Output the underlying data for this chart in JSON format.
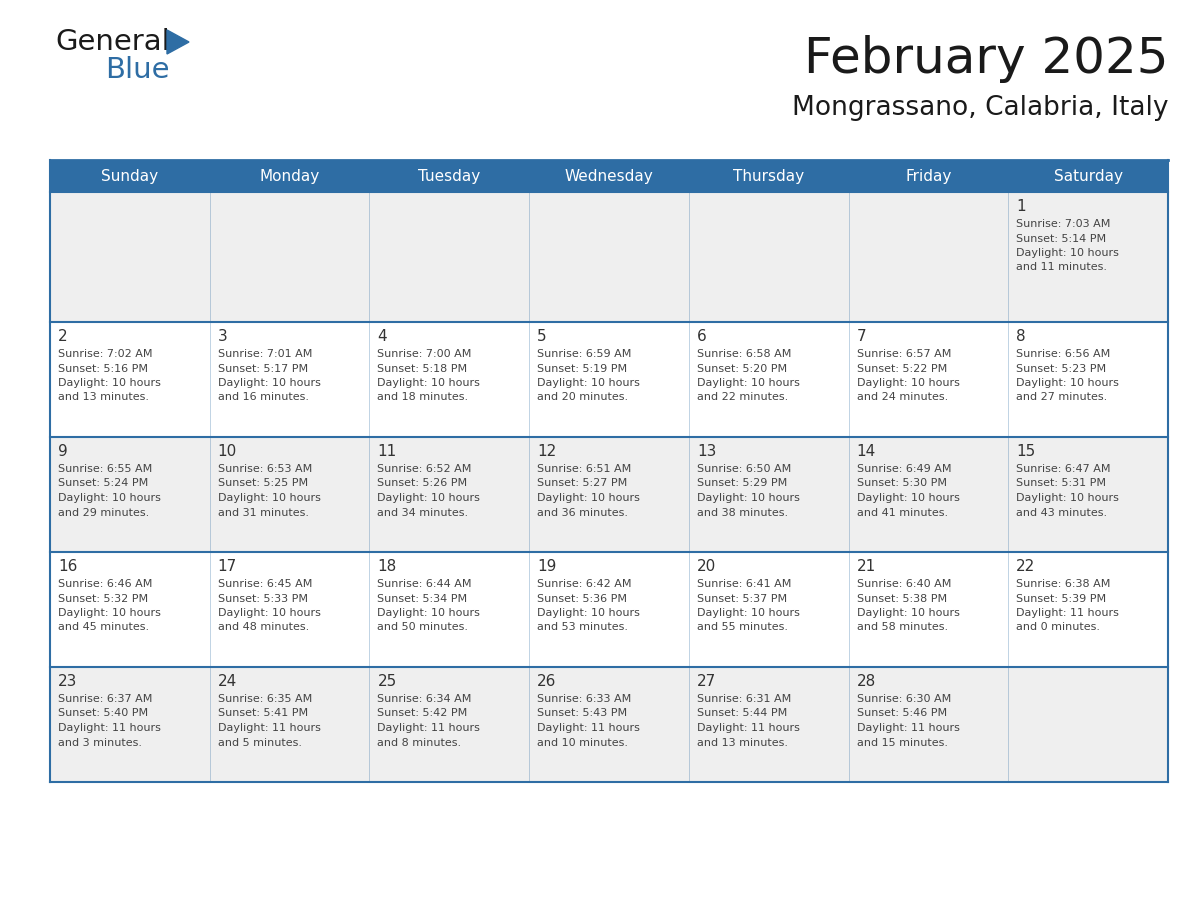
{
  "title": "February 2025",
  "subtitle": "Mongrassano, Calabria, Italy",
  "header_bg": "#2E6DA4",
  "header_text_color": "#FFFFFF",
  "cell_bg_light": "#EFEFEF",
  "cell_bg_white": "#FFFFFF",
  "day_number_color": "#333333",
  "text_color": "#444444",
  "line_color": "#2E6DA4",
  "days_of_week": [
    "Sunday",
    "Monday",
    "Tuesday",
    "Wednesday",
    "Thursday",
    "Friday",
    "Saturday"
  ],
  "calendar_data": [
    [
      null,
      null,
      null,
      null,
      null,
      null,
      {
        "day": "1",
        "sunrise": "7:03 AM",
        "sunset": "5:14 PM",
        "daylight1": "10 hours",
        "daylight2": "and 11 minutes."
      }
    ],
    [
      {
        "day": "2",
        "sunrise": "7:02 AM",
        "sunset": "5:16 PM",
        "daylight1": "10 hours",
        "daylight2": "and 13 minutes."
      },
      {
        "day": "3",
        "sunrise": "7:01 AM",
        "sunset": "5:17 PM",
        "daylight1": "10 hours",
        "daylight2": "and 16 minutes."
      },
      {
        "day": "4",
        "sunrise": "7:00 AM",
        "sunset": "5:18 PM",
        "daylight1": "10 hours",
        "daylight2": "and 18 minutes."
      },
      {
        "day": "5",
        "sunrise": "6:59 AM",
        "sunset": "5:19 PM",
        "daylight1": "10 hours",
        "daylight2": "and 20 minutes."
      },
      {
        "day": "6",
        "sunrise": "6:58 AM",
        "sunset": "5:20 PM",
        "daylight1": "10 hours",
        "daylight2": "and 22 minutes."
      },
      {
        "day": "7",
        "sunrise": "6:57 AM",
        "sunset": "5:22 PM",
        "daylight1": "10 hours",
        "daylight2": "and 24 minutes."
      },
      {
        "day": "8",
        "sunrise": "6:56 AM",
        "sunset": "5:23 PM",
        "daylight1": "10 hours",
        "daylight2": "and 27 minutes."
      }
    ],
    [
      {
        "day": "9",
        "sunrise": "6:55 AM",
        "sunset": "5:24 PM",
        "daylight1": "10 hours",
        "daylight2": "and 29 minutes."
      },
      {
        "day": "10",
        "sunrise": "6:53 AM",
        "sunset": "5:25 PM",
        "daylight1": "10 hours",
        "daylight2": "and 31 minutes."
      },
      {
        "day": "11",
        "sunrise": "6:52 AM",
        "sunset": "5:26 PM",
        "daylight1": "10 hours",
        "daylight2": "and 34 minutes."
      },
      {
        "day": "12",
        "sunrise": "6:51 AM",
        "sunset": "5:27 PM",
        "daylight1": "10 hours",
        "daylight2": "and 36 minutes."
      },
      {
        "day": "13",
        "sunrise": "6:50 AM",
        "sunset": "5:29 PM",
        "daylight1": "10 hours",
        "daylight2": "and 38 minutes."
      },
      {
        "day": "14",
        "sunrise": "6:49 AM",
        "sunset": "5:30 PM",
        "daylight1": "10 hours",
        "daylight2": "and 41 minutes."
      },
      {
        "day": "15",
        "sunrise": "6:47 AM",
        "sunset": "5:31 PM",
        "daylight1": "10 hours",
        "daylight2": "and 43 minutes."
      }
    ],
    [
      {
        "day": "16",
        "sunrise": "6:46 AM",
        "sunset": "5:32 PM",
        "daylight1": "10 hours",
        "daylight2": "and 45 minutes."
      },
      {
        "day": "17",
        "sunrise": "6:45 AM",
        "sunset": "5:33 PM",
        "daylight1": "10 hours",
        "daylight2": "and 48 minutes."
      },
      {
        "day": "18",
        "sunrise": "6:44 AM",
        "sunset": "5:34 PM",
        "daylight1": "10 hours",
        "daylight2": "and 50 minutes."
      },
      {
        "day": "19",
        "sunrise": "6:42 AM",
        "sunset": "5:36 PM",
        "daylight1": "10 hours",
        "daylight2": "and 53 minutes."
      },
      {
        "day": "20",
        "sunrise": "6:41 AM",
        "sunset": "5:37 PM",
        "daylight1": "10 hours",
        "daylight2": "and 55 minutes."
      },
      {
        "day": "21",
        "sunrise": "6:40 AM",
        "sunset": "5:38 PM",
        "daylight1": "10 hours",
        "daylight2": "and 58 minutes."
      },
      {
        "day": "22",
        "sunrise": "6:38 AM",
        "sunset": "5:39 PM",
        "daylight1": "11 hours",
        "daylight2": "and 0 minutes."
      }
    ],
    [
      {
        "day": "23",
        "sunrise": "6:37 AM",
        "sunset": "5:40 PM",
        "daylight1": "11 hours",
        "daylight2": "and 3 minutes."
      },
      {
        "day": "24",
        "sunrise": "6:35 AM",
        "sunset": "5:41 PM",
        "daylight1": "11 hours",
        "daylight2": "and 5 minutes."
      },
      {
        "day": "25",
        "sunrise": "6:34 AM",
        "sunset": "5:42 PM",
        "daylight1": "11 hours",
        "daylight2": "and 8 minutes."
      },
      {
        "day": "26",
        "sunrise": "6:33 AM",
        "sunset": "5:43 PM",
        "daylight1": "11 hours",
        "daylight2": "and 10 minutes."
      },
      {
        "day": "27",
        "sunrise": "6:31 AM",
        "sunset": "5:44 PM",
        "daylight1": "11 hours",
        "daylight2": "and 13 minutes."
      },
      {
        "day": "28",
        "sunrise": "6:30 AM",
        "sunset": "5:46 PM",
        "daylight1": "11 hours",
        "daylight2": "and 15 minutes."
      },
      null
    ]
  ],
  "logo_text_general": "General",
  "logo_text_blue": "Blue",
  "logo_color_general": "#1a1a1a",
  "logo_color_blue": "#2E6DA4",
  "logo_triangle_color": "#2E6DA4"
}
